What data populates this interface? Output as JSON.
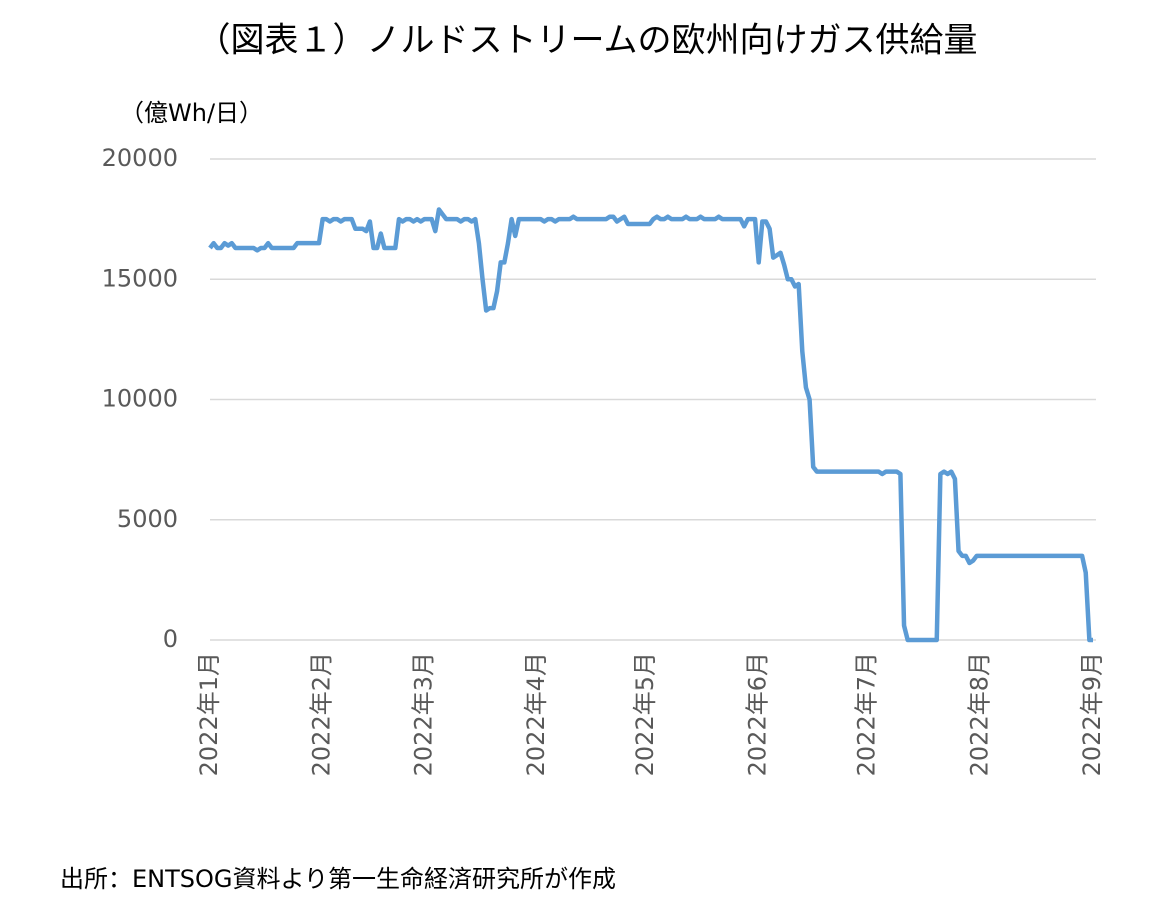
{
  "chart_data": {
    "type": "line",
    "title": "（図表１）ノルドストリームの欧州向けガス供給量",
    "y_label": "（億Wh/日）",
    "source": "出所：ENTSOG資料より第一生命経済研究所が作成",
    "categories": [
      "2022年1月",
      null,
      null,
      null,
      null,
      null,
      null,
      null,
      null,
      null,
      null,
      null,
      null,
      null,
      null,
      null,
      null,
      null,
      null,
      null,
      null,
      null,
      null,
      null,
      null,
      null,
      null,
      null,
      null,
      null,
      null,
      "2022年2月",
      null,
      null,
      null,
      null,
      null,
      null,
      null,
      null,
      null,
      null,
      null,
      null,
      null,
      null,
      null,
      null,
      null,
      null,
      null,
      null,
      null,
      null,
      null,
      null,
      null,
      null,
      null,
      "2022年3月",
      null,
      null,
      null,
      null,
      null,
      null,
      null,
      null,
      null,
      null,
      null,
      null,
      null,
      null,
      null,
      null,
      null,
      null,
      null,
      null,
      null,
      null,
      null,
      null,
      null,
      null,
      null,
      null,
      null,
      null,
      "2022年4月",
      null,
      null,
      null,
      null,
      null,
      null,
      null,
      null,
      null,
      null,
      null,
      null,
      null,
      null,
      null,
      null,
      null,
      null,
      null,
      null,
      null,
      null,
      null,
      null,
      null,
      null,
      null,
      null,
      null,
      "2022年5月",
      null,
      null,
      null,
      null,
      null,
      null,
      null,
      null,
      null,
      null,
      null,
      null,
      null,
      null,
      null,
      null,
      null,
      null,
      null,
      null,
      null,
      null,
      null,
      null,
      null,
      null,
      null,
      null,
      null,
      null,
      "2022年6月",
      null,
      null,
      null,
      null,
      null,
      null,
      null,
      null,
      null,
      null,
      null,
      null,
      null,
      null,
      null,
      null,
      null,
      null,
      null,
      null,
      null,
      null,
      null,
      null,
      null,
      null,
      null,
      null,
      null,
      "2022年7月",
      null,
      null,
      null,
      null,
      null,
      null,
      null,
      null,
      null,
      null,
      null,
      null,
      null,
      null,
      null,
      null,
      null,
      null,
      null,
      null,
      null,
      null,
      null,
      null,
      null,
      null,
      null,
      null,
      null,
      null,
      "2022年8月",
      null,
      null,
      null,
      null,
      null,
      null,
      null,
      null,
      null,
      null,
      null,
      null,
      null,
      null,
      null,
      null,
      null,
      null,
      null,
      null,
      null,
      null,
      null,
      null,
      null,
      null,
      null,
      null,
      null,
      null,
      "2022年9月"
    ],
    "series": [
      {
        "color": "#5b9bd5",
        "values": [
          16300,
          16500,
          16300,
          16300,
          16500,
          16400,
          16500,
          16300,
          16300,
          16300,
          16300,
          16300,
          16300,
          16200,
          16300,
          16300,
          16500,
          16300,
          16300,
          16300,
          16300,
          16300,
          16300,
          16300,
          16500,
          16500,
          16500,
          16500,
          16500,
          16500,
          16500,
          17500,
          17500,
          17400,
          17500,
          17500,
          17400,
          17500,
          17500,
          17500,
          17100,
          17100,
          17100,
          17000,
          17400,
          16300,
          16300,
          16900,
          16300,
          16300,
          16300,
          16300,
          17500,
          17400,
          17500,
          17500,
          17400,
          17500,
          17400,
          17500,
          17500,
          17500,
          17000,
          17900,
          17700,
          17500,
          17500,
          17500,
          17500,
          17400,
          17500,
          17500,
          17400,
          17500,
          16500,
          15000,
          13700,
          13800,
          13800,
          14500,
          15700,
          15700,
          16500,
          17500,
          16800,
          17500,
          17500,
          17500,
          17500,
          17500,
          17500,
          17500,
          17400,
          17500,
          17500,
          17400,
          17500,
          17500,
          17500,
          17500,
          17600,
          17500,
          17500,
          17500,
          17500,
          17500,
          17500,
          17500,
          17500,
          17500,
          17600,
          17600,
          17400,
          17500,
          17600,
          17300,
          17300,
          17300,
          17300,
          17300,
          17300,
          17300,
          17500,
          17600,
          17500,
          17500,
          17600,
          17500,
          17500,
          17500,
          17500,
          17600,
          17500,
          17500,
          17500,
          17600,
          17500,
          17500,
          17500,
          17500,
          17600,
          17500,
          17500,
          17500,
          17500,
          17500,
          17500,
          17200,
          17500,
          17500,
          17500,
          15700,
          17400,
          17400,
          17100,
          15900,
          16000,
          16100,
          15600,
          15000,
          15000,
          14700,
          14800,
          12000,
          10500,
          10000,
          7200,
          7000,
          7000,
          7000,
          7000,
          7000,
          7000,
          7000,
          7000,
          7000,
          7000,
          7000,
          7000,
          7000,
          7000,
          7000,
          7000,
          7000,
          7000,
          6900,
          7000,
          7000,
          7000,
          7000,
          6900,
          600,
          0,
          0,
          0,
          0,
          0,
          0,
          0,
          0,
          0,
          6900,
          7000,
          6900,
          7000,
          6700,
          3700,
          3500,
          3500,
          3200,
          3300,
          3500,
          3500,
          3500,
          3500,
          3500,
          3500,
          3500,
          3500,
          3500,
          3500,
          3500,
          3500,
          3500,
          3500,
          3500,
          3500,
          3500,
          3500,
          3500,
          3500,
          3500,
          3500,
          3500,
          3500,
          3500,
          3500,
          3500,
          3500,
          3500,
          3500,
          2800,
          0,
          0
        ]
      }
    ],
    "ylim": [
      0,
      20000
    ],
    "yticks": [
      0,
      5000,
      10000,
      15000,
      20000
    ],
    "grid": true
  }
}
